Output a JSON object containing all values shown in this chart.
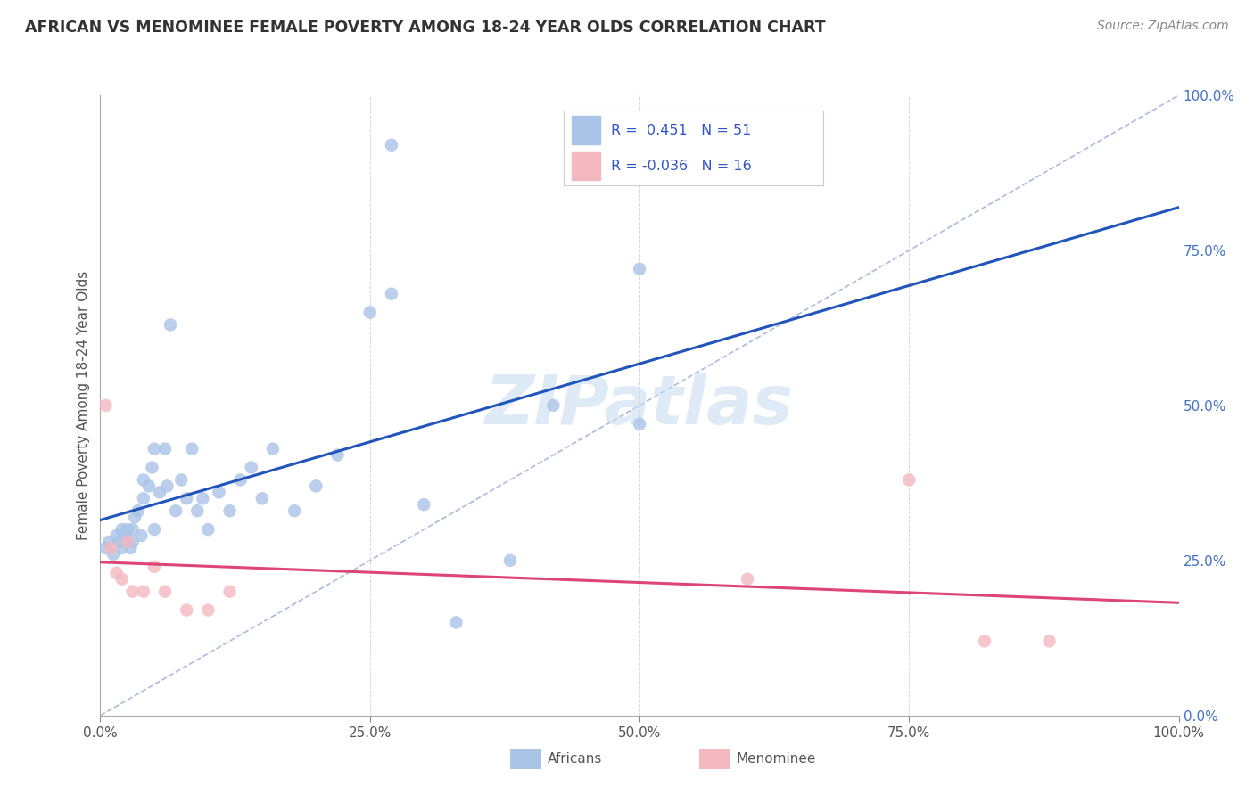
{
  "title": "AFRICAN VS MENOMINEE FEMALE POVERTY AMONG 18-24 YEAR OLDS CORRELATION CHART",
  "source": "Source: ZipAtlas.com",
  "ylabel": "Female Poverty Among 18-24 Year Olds",
  "background_color": "#ffffff",
  "plot_bg_color": "#ffffff",
  "grid_color": "#cccccc",
  "xlim": [
    0,
    1.0
  ],
  "ylim": [
    0,
    1.0
  ],
  "xticks": [
    0.0,
    0.25,
    0.5,
    0.75,
    1.0
  ],
  "yticks": [
    0.0,
    0.25,
    0.5,
    0.75,
    1.0
  ],
  "xticklabels": [
    "0.0%",
    "25.0%",
    "50.0%",
    "75.0%",
    "100.0%"
  ],
  "yticklabels": [
    "0.0%",
    "25.0%",
    "50.0%",
    "75.0%",
    "100.0%"
  ],
  "tick_color": "#4472c4",
  "diagonal_line_color": "#aabbdd",
  "african_color": "#aac4e8",
  "menominee_color": "#f4b8c1",
  "african_line_color": "#2255bb",
  "menominee_line_color": "#dd4477",
  "african_R": 0.451,
  "african_N": 51,
  "menominee_R": -0.036,
  "menominee_N": 16,
  "legend_text_color": "#3355cc",
  "watermark": "ZIPatlas",
  "africans_label": "Africans",
  "menominee_label": "Menominee",
  "african_x": [
    0.005,
    0.008,
    0.012,
    0.015,
    0.018,
    0.02,
    0.02,
    0.022,
    0.025,
    0.025,
    0.028,
    0.03,
    0.03,
    0.032,
    0.035,
    0.038,
    0.04,
    0.04,
    0.045,
    0.048,
    0.05,
    0.05,
    0.055,
    0.06,
    0.062,
    0.065,
    0.07,
    0.075,
    0.08,
    0.085,
    0.09,
    0.095,
    0.1,
    0.11,
    0.12,
    0.13,
    0.14,
    0.15,
    0.16,
    0.18,
    0.2,
    0.22,
    0.25,
    0.27,
    0.3,
    0.33,
    0.38,
    0.42,
    0.5,
    0.5,
    0.27
  ],
  "african_y": [
    0.27,
    0.28,
    0.26,
    0.29,
    0.28,
    0.3,
    0.27,
    0.29,
    0.28,
    0.3,
    0.27,
    0.28,
    0.3,
    0.32,
    0.33,
    0.29,
    0.35,
    0.38,
    0.37,
    0.4,
    0.43,
    0.3,
    0.36,
    0.43,
    0.37,
    0.63,
    0.33,
    0.38,
    0.35,
    0.43,
    0.33,
    0.35,
    0.3,
    0.36,
    0.33,
    0.38,
    0.4,
    0.35,
    0.43,
    0.33,
    0.37,
    0.42,
    0.65,
    0.68,
    0.34,
    0.15,
    0.25,
    0.5,
    0.47,
    0.72,
    0.92
  ],
  "menominee_x": [
    0.005,
    0.01,
    0.015,
    0.02,
    0.025,
    0.03,
    0.04,
    0.05,
    0.06,
    0.08,
    0.1,
    0.12,
    0.6,
    0.75,
    0.82,
    0.88
  ],
  "menominee_y": [
    0.5,
    0.27,
    0.23,
    0.22,
    0.28,
    0.2,
    0.2,
    0.24,
    0.2,
    0.17,
    0.17,
    0.2,
    0.22,
    0.38,
    0.12,
    0.12
  ]
}
